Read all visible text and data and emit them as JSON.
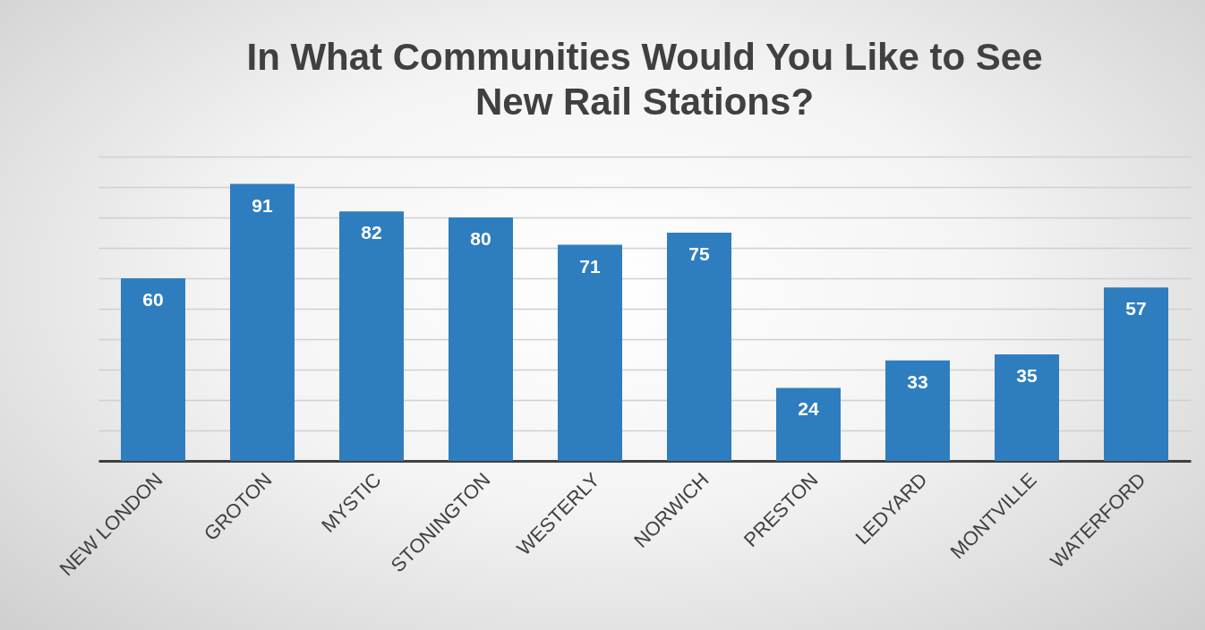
{
  "chart_data": {
    "type": "bar",
    "title": "In What Communities Would You Like to See New Rail Stations?",
    "categories": [
      "NEW LONDON",
      "GROTON",
      "MYSTIC",
      "STONINGTON",
      "WESTERLY",
      "NORWICH",
      "PRESTON",
      "LEDYARD",
      "MONTVILLE",
      "WATERFORD"
    ],
    "values": [
      60,
      91,
      82,
      80,
      71,
      75,
      24,
      33,
      35,
      57
    ],
    "color": "#2e7ebf",
    "ylim": [
      0,
      100
    ],
    "yticks": [
      {
        "value": 0,
        "label": null
      },
      {
        "value": 10,
        "label": null
      },
      {
        "value": 20,
        "label": null
      },
      {
        "value": 30,
        "label": null
      },
      {
        "value": 40,
        "label": null
      },
      {
        "value": 50,
        "label": null
      },
      {
        "value": 60,
        "label": null
      },
      {
        "value": 70,
        "label": null
      },
      {
        "value": 80,
        "label": null
      },
      {
        "value": 90,
        "label": null
      },
      {
        "value": 100,
        "label": null
      }
    ],
    "grid": "y",
    "tick_labels": "x",
    "data_labels": true
  }
}
